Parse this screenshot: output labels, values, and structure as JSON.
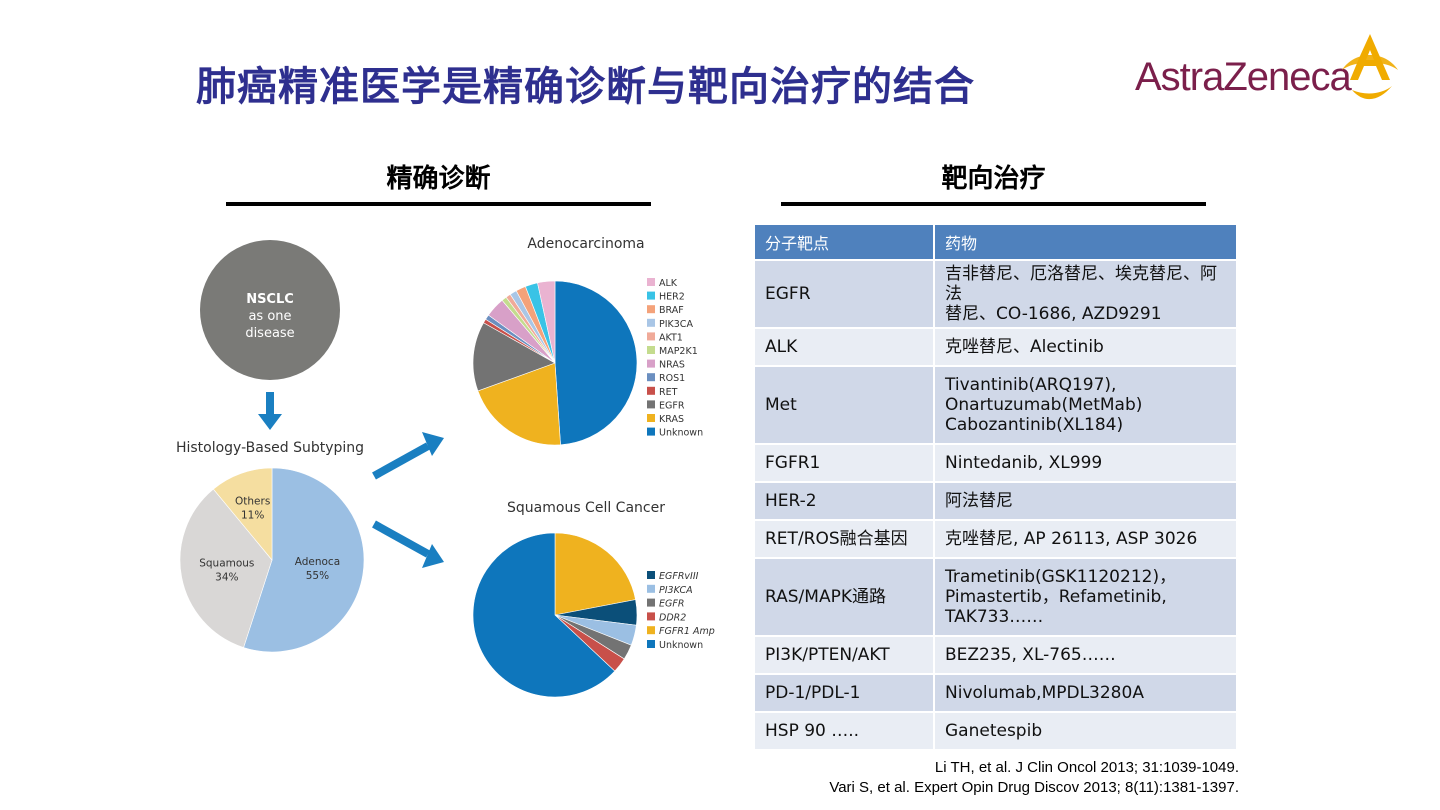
{
  "slide": {
    "title": "肺癌精准医学是精确诊断与靶向治疗的结合",
    "logo_text": "AstraZeneca"
  },
  "left_section": {
    "heading": "精确诊断"
  },
  "right_section": {
    "heading": "靶向治疗"
  },
  "diagram": {
    "nsclc_circle": [
      "NSCLC",
      "as one",
      "disease"
    ],
    "histology_title": "Histology-Based Subtyping"
  },
  "chart_data": [
    {
      "type": "pie",
      "title": "Histology-Based Subtyping",
      "slices": [
        {
          "label": "Adenoca",
          "value": 55,
          "color": "#9bbfe3",
          "display": [
            "Adenoca",
            "55%"
          ]
        },
        {
          "label": "Squamous",
          "value": 34,
          "color": "#d9d7d6",
          "display": [
            "Squamous",
            "34%"
          ]
        },
        {
          "label": "Others",
          "value": 11,
          "color": "#f5dea0",
          "display": [
            "Others",
            "11%"
          ]
        }
      ]
    },
    {
      "type": "pie",
      "title": "Adenocarcinoma",
      "slices": [
        {
          "label": "Unknown",
          "value": 50,
          "color": "#0e76bc"
        },
        {
          "label": "KRAS",
          "value": 21,
          "color": "#efb21f"
        },
        {
          "label": "EGFR",
          "value": 14,
          "color": "#737373"
        },
        {
          "label": "RET",
          "value": 0.8,
          "color": "#c8504a"
        },
        {
          "label": "ROS1",
          "value": 1.0,
          "color": "#6b8fc0"
        },
        {
          "label": "NRAS",
          "value": 4.0,
          "color": "#d8a0c8"
        },
        {
          "label": "MAP2K1",
          "value": 1.0,
          "color": "#c4dc8e"
        },
        {
          "label": "AKT1",
          "value": 1.0,
          "color": "#f0aa99"
        },
        {
          "label": "PIK3CA",
          "value": 1.4,
          "color": "#a9c6e6"
        },
        {
          "label": "BRAF",
          "value": 2.0,
          "color": "#f4a27a"
        },
        {
          "label": "HER2",
          "value": 2.5,
          "color": "#39c3e6"
        },
        {
          "label": "ALK",
          "value": 3.5,
          "color": "#eab3d1"
        }
      ],
      "legend": [
        "ALK",
        "HER2",
        "BRAF",
        "PIK3CA",
        "AKT1",
        "MAP2K1",
        "NRAS",
        "ROS1",
        "RET",
        "EGFR",
        "KRAS",
        "Unknown"
      ],
      "legend_colors": [
        "#eab3d1",
        "#39c3e6",
        "#f4a27a",
        "#a9c6e6",
        "#f0aa99",
        "#c4dc8e",
        "#d8a0c8",
        "#6b8fc0",
        "#c8504a",
        "#737373",
        "#efb21f",
        "#0e76bc"
      ]
    },
    {
      "type": "pie",
      "title": "Squamous Cell Cancer",
      "slices": [
        {
          "label": "FGFR1 Amp",
          "value": 22,
          "color": "#efb21f"
        },
        {
          "label": "EGFRvIII",
          "value": 5,
          "color": "#0b4f79"
        },
        {
          "label": "PI3KCA",
          "value": 4,
          "color": "#9bbfe3"
        },
        {
          "label": "EGFR",
          "value": 3,
          "color": "#737373"
        },
        {
          "label": "DDR2",
          "value": 3,
          "color": "#c8504a"
        },
        {
          "label": "Unknown",
          "value": 63,
          "color": "#0e76bc"
        }
      ],
      "legend": [
        "EGFRvIII",
        "PI3KCA",
        "EGFR",
        "DDR2",
        "FGFR1 Amp",
        "Unknown"
      ],
      "legend_colors": [
        "#0b4f79",
        "#9bbfe3",
        "#737373",
        "#c8504a",
        "#efb21f",
        "#0e76bc"
      ]
    }
  ],
  "table": {
    "headers": [
      "分子靶点",
      "药物"
    ],
    "rows": [
      {
        "target": "EGFR",
        "drugs": [
          "吉非替尼、厄洛替尼、埃克替尼、阿法",
          "替尼、CO-1686, AZD9291"
        ]
      },
      {
        "target": "ALK",
        "drugs": [
          "克唑替尼、Alectinib"
        ]
      },
      {
        "target": "Met",
        "drugs": [
          "Tivantinib(ARQ197),",
          "Onartuzumab(MetMab)",
          "Cabozantinib(XL184)"
        ]
      },
      {
        "target": "FGFR1",
        "drugs": [
          "Nintedanib, XL999"
        ]
      },
      {
        "target": "HER-2",
        "drugs": [
          "阿法替尼"
        ]
      },
      {
        "target": "RET/ROS融合基因",
        "drugs": [
          "克唑替尼, AP 26113, ASP 3026"
        ]
      },
      {
        "target": "RAS/MAPK通路",
        "drugs": [
          "Trametinib(GSK1120212)，",
          "Pimastertib，Refametinib,",
          "TAK733……"
        ]
      },
      {
        "target": "PI3K/PTEN/AKT",
        "drugs": [
          "BEZ235, XL-765……"
        ]
      },
      {
        "target": "PD-1/PDL-1",
        "drugs": [
          "Nivolumab,MPDL3280A"
        ]
      },
      {
        "target": "HSP 90 …..",
        "drugs": [
          "Ganetespib"
        ]
      }
    ]
  },
  "references": [
    "Li TH, et al. J Clin Oncol 2013; 31:1039-1049.",
    "Vari S, et al. Expert Opin Drug Discov 2013; 8(11):1381-1397."
  ],
  "colors": {
    "title": "#2e2f8f",
    "logo": "#7b1f4b",
    "logo_mark": "#f0ab00",
    "table_header": "#4f81bd",
    "arrow": "#1a7fc1"
  }
}
